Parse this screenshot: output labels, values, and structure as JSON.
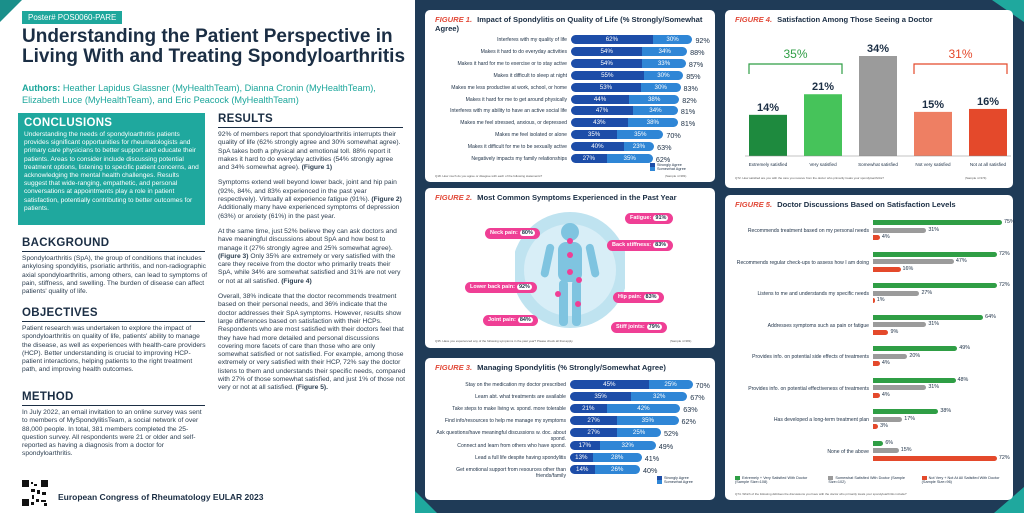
{
  "tag": "Poster# POS0060-PARE",
  "title": "Understanding the Patient Perspective in Living With and Treating Spondyloarthritis",
  "authors_label": "Authors:",
  "authors": "Heather Lapidus Glassner (MyHealthTeam), Dianna Cronin (MyHealthTeam), Elizabeth Luce (MyHealthTeam), and Eric Peacock (MyHealthTeam)",
  "conclusions": {
    "heading": "CONCLUSIONS",
    "body": "Understanding the needs of spondyloarthritis patients provides significant opportunities for rheumatologists and primary care physicians to better support and educate their patients. Areas to consider include discussing potential treatment options, listening to specific patient concerns, and acknowledging the mental health challenges. Results suggest that wide-ranging, empathetic, and personal conversations at appointments play a role in patient satisfaction, potentially contributing to better outcomes for patients."
  },
  "background": {
    "heading": "BACKGROUND",
    "body": "Spondyloarthritis (SpA), the group of conditions that includes ankylosing spondylitis, psoriatic arthritis, and non-radiographic axial spondyloarthritis, among others, can lead to symptoms of pain, stiffness, and swelling. The burden of disease can affect patients' quality of life."
  },
  "objectives": {
    "heading": "OBJECTIVES",
    "body": "Patient research was undertaken to explore the impact of spondyloarthritis on quality of life, patients' ability to manage the disease, as well as experiences with health-care providers (HCP). Better understanding is crucial to improving HCP-patient interactions, helping patients to the right treatment path, and improving health outcomes."
  },
  "method": {
    "heading": "METHOD",
    "body": "In July 2022, an email invitation to an online survey was sent to members of MySpondylitisTeam, a social network of over 88,000 people. In total, 381 members completed the 25-question survey. All respondents were 21 or older and self-reported as having a diagnosis from a doctor for spondyloarthritis."
  },
  "results": {
    "heading": "RESULTS",
    "p1": "92% of members report that spondyloarthritis interrupts their quality of life (62% strongly agree and 30% somewhat agree). SpA takes both a physical and emotional toll. 88% report it makes it hard to do everyday activities (54% strongly agree and 34% somewhat agree).",
    "p1b": " (Figure 1)",
    "p2": "Symptoms extend well beyond lower back, joint and hip pain (92%, 84%, and 83% experienced in the past year respectively). Virtually all experience fatigue (91%).",
    "p2b": " (Figure 2)",
    "p2c": " Additionally many have experienced symptoms of depression (63%) or anxiety (61%) in the past year.",
    "p3": "At the same time, just 52% believe they can ask doctors and have meaningful discussions about SpA and how best to manage it (27% strongly agree and 25% somewhat agree).",
    "p3b": " (Figure 3)",
    "p3c": " Only 35% are extremely or very satisfied with the care they receive from the doctor who primarily treats their SpA, while 34% are somewhat satisfied and 31% are not very or not at all satisfied.",
    "p3d": " (Figure 4)",
    "p4": "Overall, 38% indicate that the doctor recommends treatment based on their personal needs, and 36% indicate that the doctor addresses their SpA symptoms. However, results show large differences based on satisfaction with their HCPs. Respondents who are most satisfied with their doctors feel that they have had more detailed and personal discussions covering more facets of care than those who are only somewhat satisfied or not satisfied. For example, among those extremely or very satisfied with their HCP, 72% say the doctor listens to them and understands their specific needs, compared with 27% of those somewhat satisfied, and just 1% of those not very or not at all satisfied.",
    "p4b": " (Figure 5)."
  },
  "congress": "European Congress of Rheumatology EULAR 2023",
  "fig1": {
    "num": "FIGURE 1.",
    "title": "Impact of Spondylitis on Quality of Life (% Strongly/Somewhat Agree)",
    "rows": [
      {
        "label": "Interferes with my quality of life",
        "a": 62,
        "b": 30,
        "t": 92
      },
      {
        "label": "Makes it hard to do everyday activities",
        "a": 54,
        "b": 34,
        "t": 88
      },
      {
        "label": "Makes it hard for me to exercise or to stay active",
        "a": 54,
        "b": 33,
        "t": 87
      },
      {
        "label": "Makes it difficult to sleep at night",
        "a": 55,
        "b": 30,
        "t": 85
      },
      {
        "label": "Makes me less productive at work, school, or home",
        "a": 53,
        "b": 30,
        "t": 83
      },
      {
        "label": "Makes it hard for me to get around physically",
        "a": 44,
        "b": 38,
        "t": 82
      },
      {
        "label": "Interferes with my ability to have an active social life",
        "a": 47,
        "b": 34,
        "t": 81
      },
      {
        "label": "Makes me feel stressed, anxious, or depressed",
        "a": 43,
        "b": 38,
        "t": 81
      },
      {
        "label": "Makes me feel isolated or alone",
        "a": 35,
        "b": 35,
        "t": 70
      },
      {
        "label": "Makes it difficult for me to be sexually active",
        "a": 40,
        "b": 23,
        "t": 63
      },
      {
        "label": "Negatively impacts my family relationships",
        "a": 27,
        "b": 35,
        "t": 62
      }
    ],
    "legend": [
      "Strongly Agree",
      "Somewhat Agree"
    ],
    "footnote": "Q18. How much do you agree or disagree with each of the following statements?",
    "footnote2": "(Sample n=381)"
  },
  "fig2": {
    "num": "FIGURE 2.",
    "title": "Most Common Symptoms Experienced in the Past Year",
    "symptoms": [
      {
        "label": "Neck pain:",
        "v": "80%"
      },
      {
        "label": "Lower back pain:",
        "v": "92%"
      },
      {
        "label": "Joint pain:",
        "v": "84%"
      },
      {
        "label": "Fatigue:",
        "v": "91%"
      },
      {
        "label": "Back stiffness:",
        "v": "83%"
      },
      {
        "label": "Hip pain:",
        "v": "83%"
      },
      {
        "label": "Stiff joints:",
        "v": "79%"
      }
    ],
    "footnote": "Q35. Have you experienced any of the following symptoms in the past year? Please check all that apply.",
    "footnote2": "(Sample n=381)"
  },
  "fig3": {
    "num": "FIGURE 3.",
    "title": "Managing Spondylitis (% Strongly/Somewhat Agree)",
    "rows": [
      {
        "label": "Stay on the medication my doctor prescribed",
        "a": 45,
        "b": 25,
        "t": 70
      },
      {
        "label": "Learn abt. what treatments are available",
        "a": 35,
        "b": 32,
        "t": 67
      },
      {
        "label": "Take steps to make living w. spond. more tolerable",
        "a": 21,
        "b": 42,
        "t": 63
      },
      {
        "label": "Find info/resources to help me manage my symptoms",
        "a": 27,
        "b": 35,
        "t": 62
      },
      {
        "label": "Ask questions/have meaningful discussions w. doc. about spond.",
        "a": 27,
        "b": 25,
        "t": 52
      },
      {
        "label": "Connect and learn from others who have spond.",
        "a": 17,
        "b": 32,
        "t": 49
      },
      {
        "label": "Lead a full life despite having spondylitis",
        "a": 13,
        "b": 28,
        "t": 41
      },
      {
        "label": "Get emotional support from resources other than friends/family",
        "a": 14,
        "b": 26,
        "t": 40
      }
    ],
    "legend": [
      "Strongly Agree",
      "Somewhat Agree"
    ]
  },
  "fig4": {
    "num": "FIGURE 4.",
    "title": "Satisfaction Among Those Seeing a Doctor",
    "bars": [
      {
        "label": "Extremely satisfied",
        "v": 14,
        "c": "#1e8a3e"
      },
      {
        "label": "Very satisfied",
        "v": 21,
        "c": "#46c35a"
      },
      {
        "label": "Somewhat satisfied",
        "v": 34,
        "c": "#9b9b9b"
      },
      {
        "label": "Not very satisfied",
        "v": 15,
        "c": "#ee7f63"
      },
      {
        "label": "Not at all satisfied",
        "v": 16,
        "c": "#e4492b"
      }
    ],
    "group_left": "35%",
    "group_right": "31%",
    "footnote": "Q72. How satisfied are you with the care you receive from the doctor who primarily treats your spondyloarthritis?",
    "footnote2": "(Sample n=374)"
  },
  "fig5": {
    "num": "FIGURE 5.",
    "title": "Doctor Discussions Based on Satisfaction Levels",
    "rows": [
      {
        "label": "Recommends treatment based on my personal needs",
        "g": 75,
        "s": 31,
        "r": 4
      },
      {
        "label": "Recommends regular check-ups to assess how I am doing",
        "g": 72,
        "s": 47,
        "r": 16
      },
      {
        "label": "Listens to me and understands my specific needs",
        "g": 72,
        "s": 27,
        "r": 1
      },
      {
        "label": "Addresses symptoms such as pain or fatigue",
        "g": 64,
        "s": 31,
        "r": 9
      },
      {
        "label": "Provides info. on potential side effects of treatments",
        "g": 49,
        "s": 20,
        "r": 4
      },
      {
        "label": "Provides info. on potential effectiveness of treatments",
        "g": 48,
        "s": 31,
        "r": 4
      },
      {
        "label": "Has developed a long-term treatment plan",
        "g": 38,
        "s": 17,
        "r": 3
      },
      {
        "label": "None of the above",
        "g": 6,
        "s": 15,
        "r": 72
      }
    ],
    "legend": [
      "Extremely + Very Satisfied With Doctor (Sample Size=108)",
      "Somewhat Satisfied With Doctor (Sample Size=102)",
      "Not Very + Not At All Satisfied With Doctor (Sample Size=96)"
    ],
    "footnote": "Q74. Which of the following did/does the discussions you have with the doctor who primarily treats your spondyloarthritis include?"
  },
  "colors": {
    "teal": "#1fa89e",
    "navy": "#1f3b57",
    "strong": "#1d4da8",
    "somewhat": "#2f86d6",
    "green": "#2f9e45",
    "gray": "#9b9b9b",
    "red": "#e4492b"
  }
}
